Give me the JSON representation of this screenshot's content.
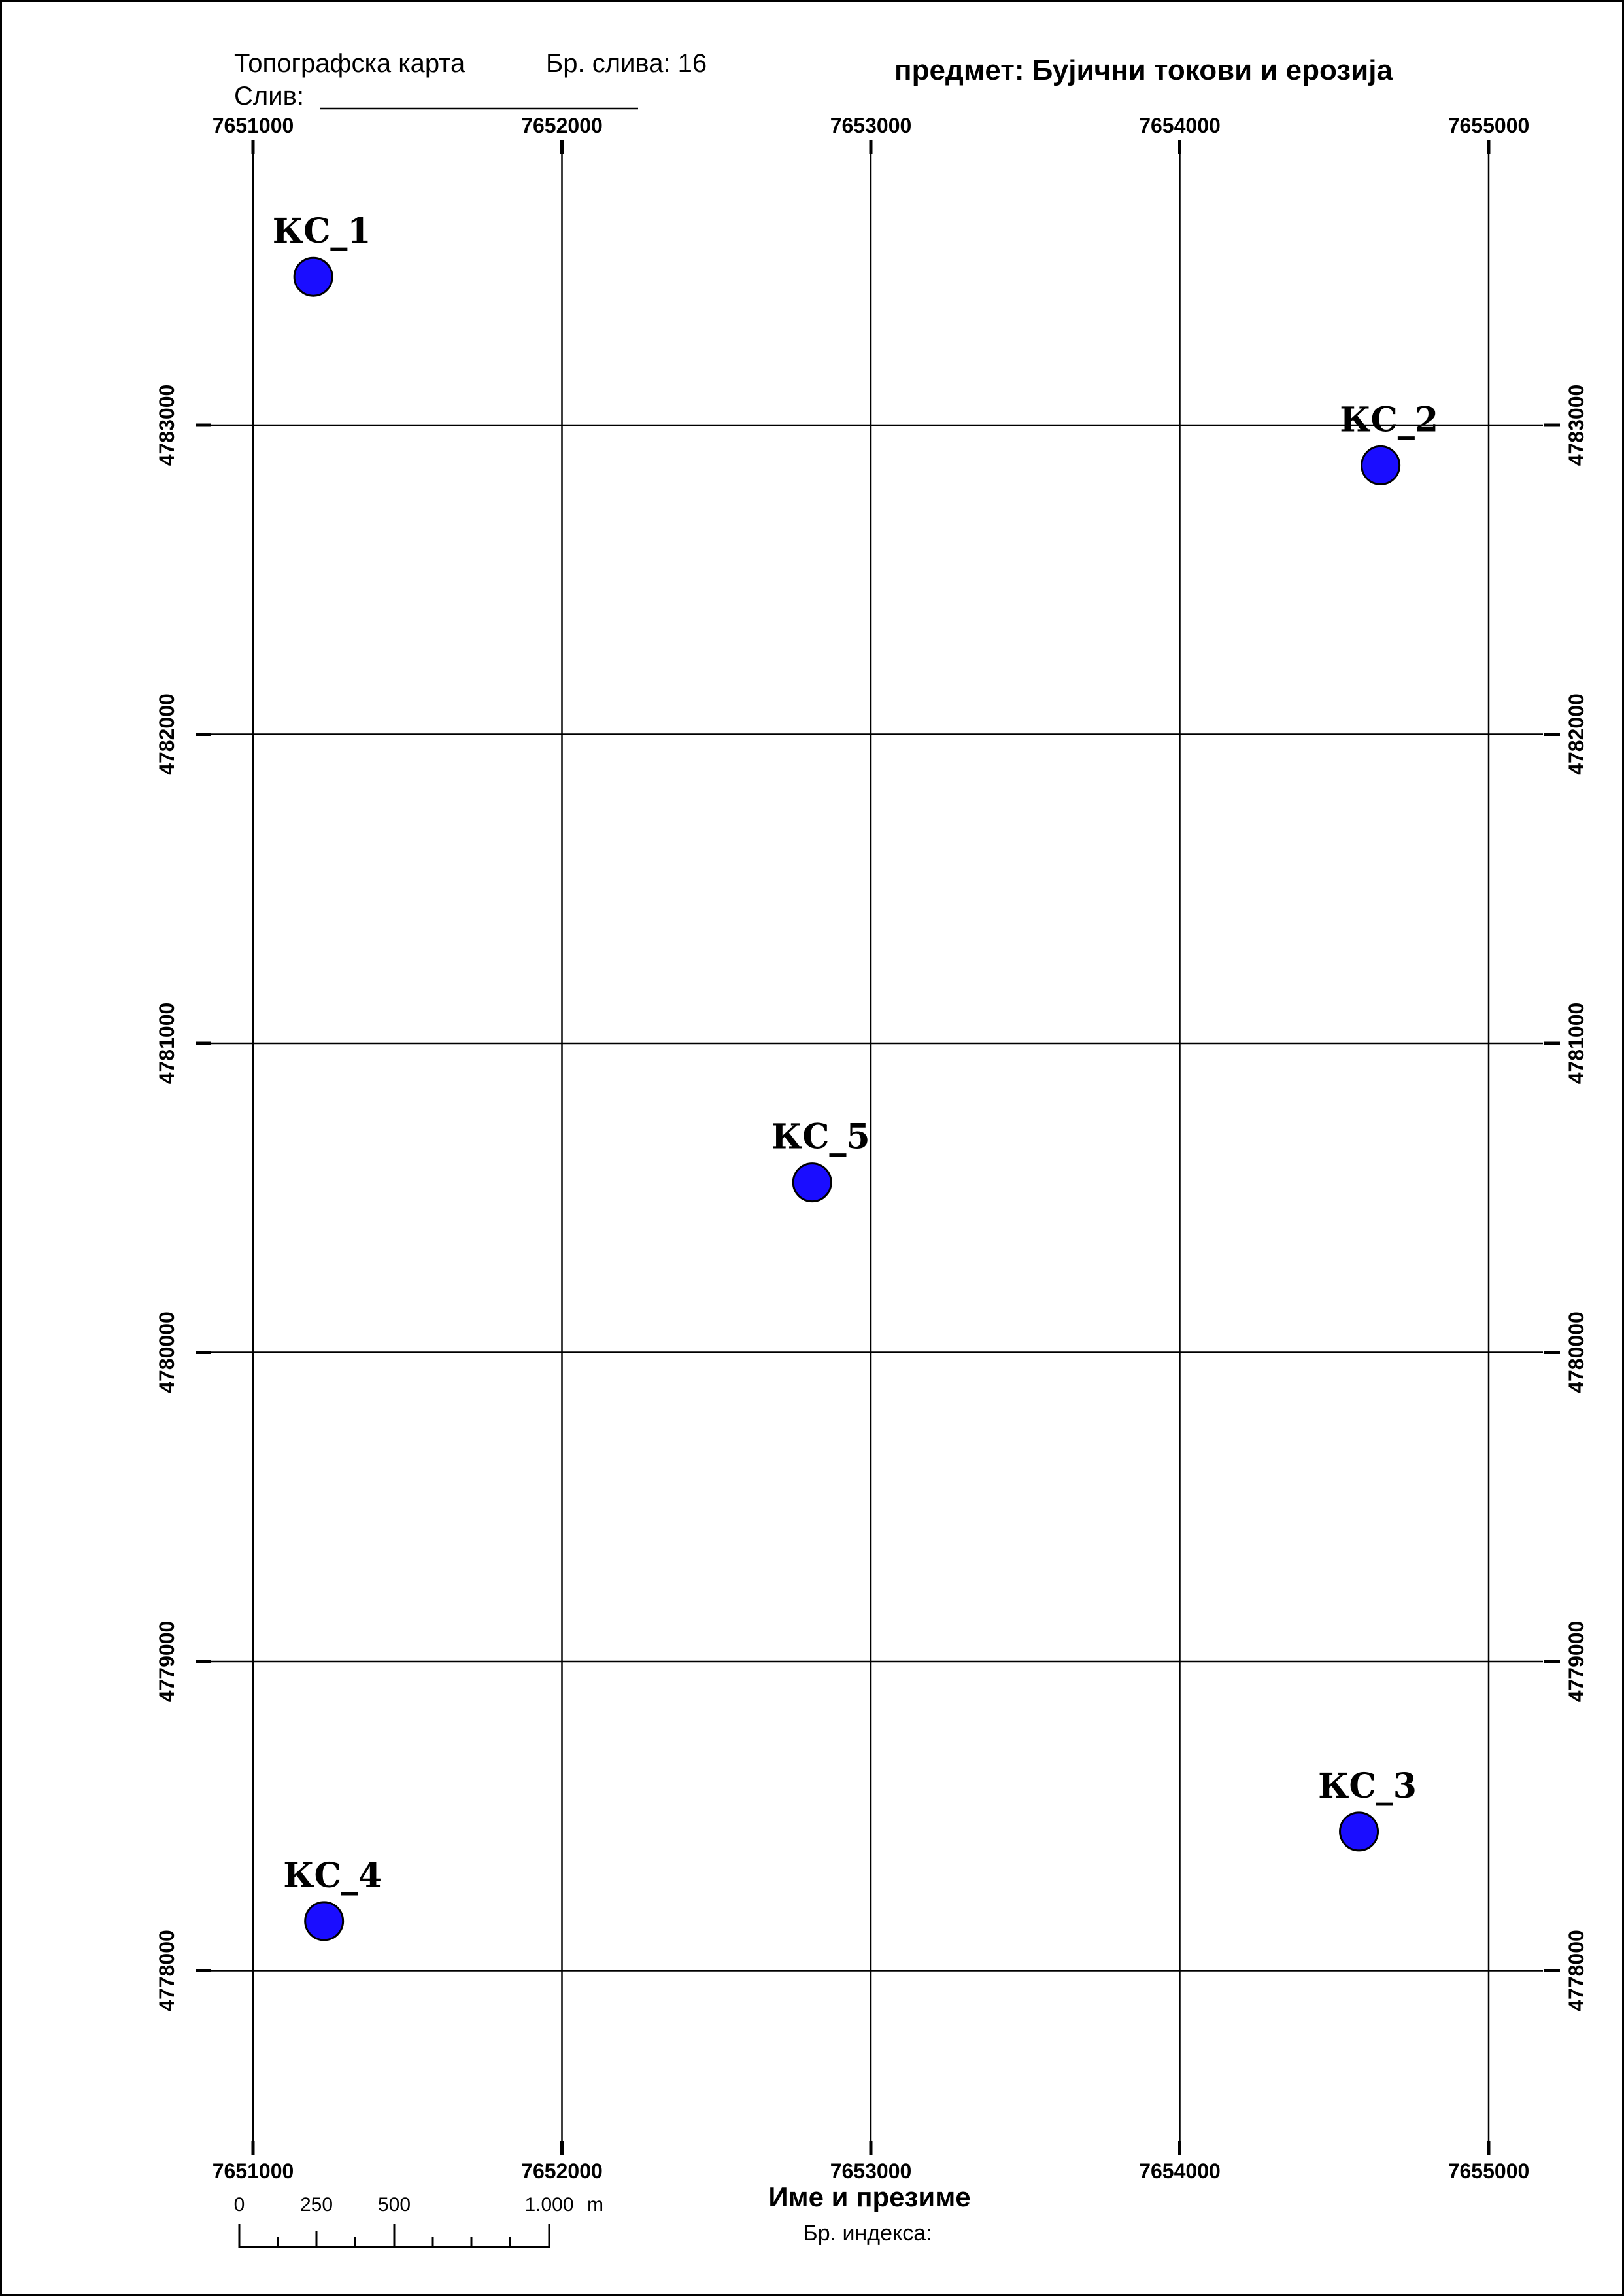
{
  "header": {
    "map_type": "Топографска карта",
    "sheet_number": "Бр. слива: 16",
    "basin_label": "Слив:",
    "subject": "предмет: Бујични токови и ерозија"
  },
  "grid": {
    "eastings": [
      7651000,
      7652000,
      7653000,
      7654000,
      7655000
    ],
    "northings": [
      4783000,
      4782000,
      4781000,
      4780000,
      4779000,
      4778000
    ],
    "easting_labels": [
      "7651000",
      "7652000",
      "7653000",
      "7654000",
      "7655000"
    ],
    "northing_labels": [
      "4783000",
      "4782000",
      "4781000",
      "4780000",
      "4779000",
      "4778000"
    ]
  },
  "stations": [
    {
      "label": "КС_1",
      "easting": 7651195,
      "northing": 4783480
    },
    {
      "label": "КС_2",
      "easting": 7654650,
      "northing": 4782870
    },
    {
      "label": "КС_3",
      "easting": 7654580,
      "northing": 4778450
    },
    {
      "label": "КС_4",
      "easting": 7651230,
      "northing": 4778160
    },
    {
      "label": "КС_5",
      "easting": 7652810,
      "northing": 4780550
    }
  ],
  "scale_bar": {
    "labels": [
      "0",
      "250",
      "500",
      "1.000"
    ],
    "unit": "m"
  },
  "footer": {
    "name_label": "Име и презиме",
    "index_label": "Бр. индекса:"
  },
  "colors": {
    "station_fill": "#1a0dff",
    "line": "#000000",
    "background": "#ffffff"
  }
}
